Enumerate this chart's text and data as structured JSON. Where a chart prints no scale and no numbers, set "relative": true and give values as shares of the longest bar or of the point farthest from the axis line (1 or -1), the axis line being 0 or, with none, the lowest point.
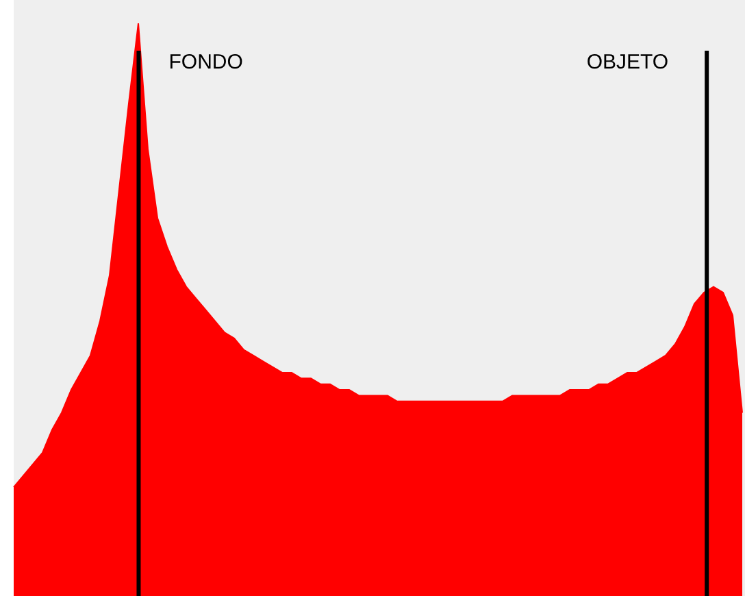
{
  "chart_data": {
    "type": "area",
    "relative": true,
    "categories": [
      null,
      null,
      null,
      null,
      null,
      null,
      null,
      null,
      null,
      null,
      null,
      null,
      null,
      null,
      null,
      null,
      null,
      null,
      null,
      null,
      null,
      null,
      null,
      null,
      null,
      null,
      null,
      null,
      null,
      null,
      null,
      null,
      null,
      null,
      null,
      null,
      null,
      null,
      null,
      null,
      null,
      null,
      null,
      null,
      null,
      null,
      null,
      null,
      null,
      null,
      null,
      null,
      null,
      null,
      null,
      null,
      null,
      null,
      null,
      null,
      null,
      null,
      null,
      null,
      null,
      null,
      null,
      null,
      null,
      null,
      null,
      null,
      null,
      null,
      null,
      null,
      null
    ],
    "series": [
      {
        "color": "#ff0000",
        "values": [
          0.19,
          0.21,
          0.23,
          0.25,
          0.29,
          0.32,
          0.36,
          0.39,
          0.42,
          0.48,
          0.56,
          0.71,
          0.86,
          1,
          0.78,
          0.66,
          0.61,
          0.57,
          0.54,
          0.52,
          0.5,
          0.48,
          0.46,
          0.45,
          0.43,
          0.42,
          0.41,
          0.4,
          0.39,
          0.39,
          0.38,
          0.38,
          0.37,
          0.37,
          0.36,
          0.36,
          0.35,
          0.35,
          0.35,
          0.35,
          0.34,
          0.34,
          0.34,
          0.34,
          0.34,
          0.34,
          0.34,
          0.34,
          0.34,
          0.34,
          0.34,
          0.34,
          0.35,
          0.35,
          0.35,
          0.35,
          0.35,
          0.35,
          0.36,
          0.36,
          0.36,
          0.37,
          0.37,
          0.38,
          0.39,
          0.39,
          0.4,
          0.41,
          0.42,
          0.44,
          0.47,
          0.51,
          0.53,
          0.54,
          0.53,
          0.49,
          0.32
        ]
      }
    ],
    "annotations": [
      "FONDO",
      "OBJETO"
    ],
    "legend": false
  }
}
